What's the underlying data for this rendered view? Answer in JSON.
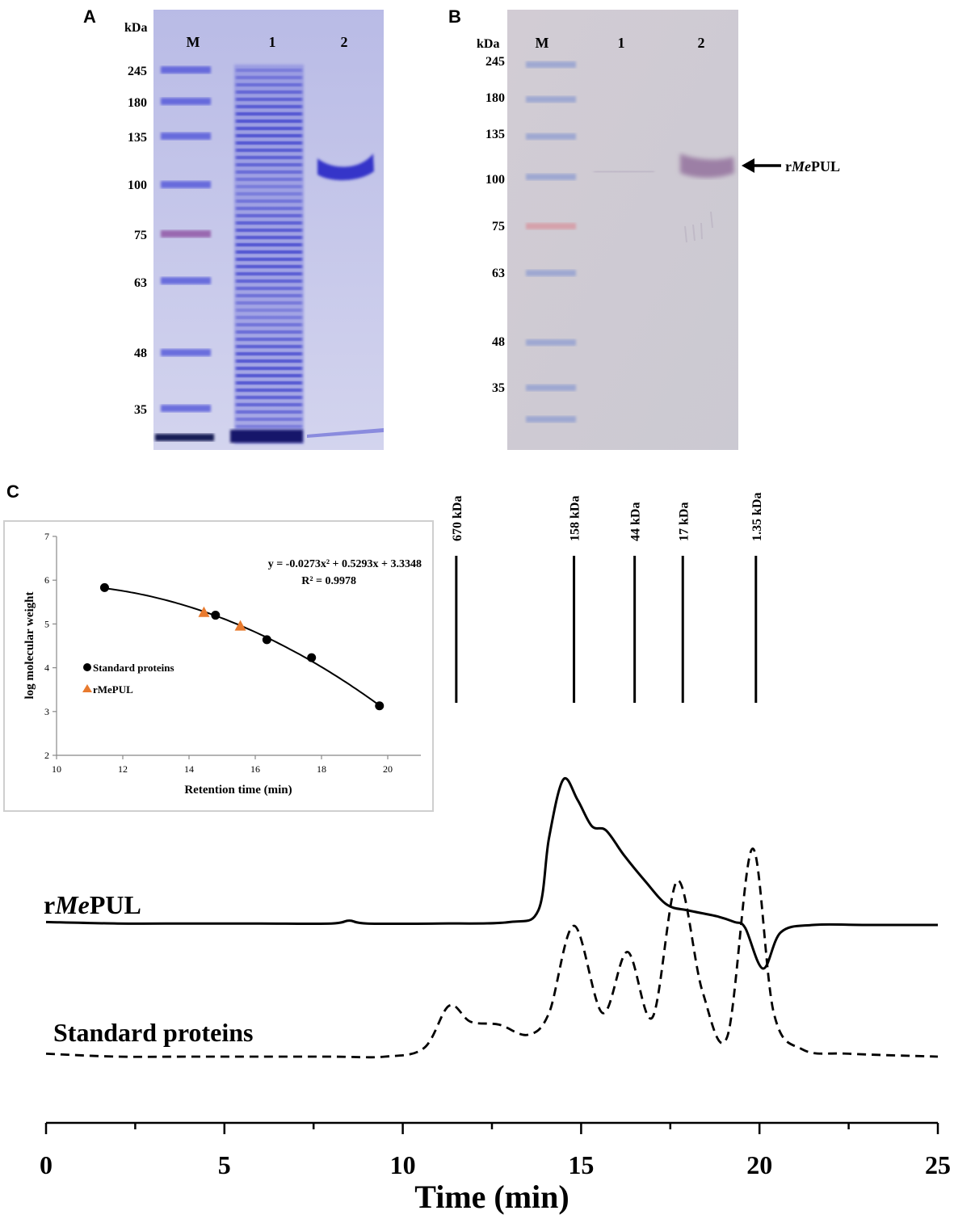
{
  "panels": {
    "a": {
      "letter": "A",
      "kda_label": "kDa",
      "lane_labels": [
        "M",
        "1",
        "2"
      ],
      "markers": [
        "245",
        "180",
        "135",
        "100",
        "75",
        "63",
        "48",
        "35"
      ]
    },
    "b": {
      "letter": "B",
      "kda_label": "kDa",
      "lane_labels": [
        "M",
        "1",
        "2"
      ],
      "markers": [
        "245",
        "180",
        "135",
        "100",
        "75",
        "63",
        "48",
        "35"
      ],
      "arrow_label_prefix": "r",
      "arrow_label_italic": "Me",
      "arrow_label_suffix": "PUL"
    },
    "c": {
      "letter": "C",
      "mw_standards": [
        "670 kDa",
        "158 kDa",
        "44 kDa",
        "17 kDa",
        "1.35 kDa"
      ],
      "trace_label_prefix": "r",
      "trace_label_italic": "Me",
      "trace_label_suffix": "PUL",
      "standards_label": "Standard proteins"
    }
  },
  "colors": {
    "coomassie": "#3b3fd6",
    "gel_bg": "#c9cbe9",
    "membrane_bg": "#cfcbd4",
    "triangle": "#e87a2e"
  },
  "chart_data": [
    {
      "type": "line",
      "xlabel": "Time (min)",
      "xlim": [
        0,
        25
      ],
      "xticks": [
        0,
        5,
        10,
        15,
        20,
        25
      ],
      "series": [
        {
          "name": "rMePUL",
          "style": "solid",
          "x": [
            0,
            2,
            4,
            6,
            8,
            8.5,
            9,
            11,
            13,
            13.8,
            14.1,
            14.5,
            14.9,
            15.3,
            15.7,
            16.2,
            16.8,
            17.4,
            18,
            18.8,
            19.3,
            19.6,
            20.1,
            20.6,
            21.5,
            23,
            25
          ],
          "y": [
            0.02,
            0.01,
            0.01,
            0.01,
            0.01,
            0.03,
            0.01,
            0.01,
            0.02,
            0.1,
            0.6,
            1.0,
            0.86,
            0.68,
            0.65,
            0.48,
            0.3,
            0.14,
            0.1,
            0.06,
            0.02,
            -0.02,
            -0.3,
            -0.05,
            0.0,
            0.0,
            0.0
          ]
        },
        {
          "name": "Standard proteins",
          "style": "dashed",
          "x": [
            0,
            2,
            4,
            6,
            8,
            9.5,
            10.6,
            11.3,
            11.9,
            12.7,
            13.5,
            14.1,
            14.8,
            15.6,
            16.3,
            17.0,
            17.7,
            18.4,
            19.1,
            19.8,
            20.4,
            21.2,
            22.5,
            25
          ],
          "y": [
            0.02,
            0.0,
            0.0,
            0.0,
            0.0,
            0.0,
            0.06,
            0.35,
            0.24,
            0.22,
            0.15,
            0.3,
            0.9,
            0.3,
            0.72,
            0.27,
            1.21,
            0.45,
            0.14,
            1.43,
            0.3,
            0.05,
            0.02,
            0.0
          ]
        }
      ],
      "mw_markers": [
        {
          "label": "670 kDa",
          "time": 11.5
        },
        {
          "label": "158 kDa",
          "time": 14.8
        },
        {
          "label": "44 kDa",
          "time": 16.5
        },
        {
          "label": "17 kDa",
          "time": 17.85
        },
        {
          "label": "1.35 kDa",
          "time": 19.9
        }
      ],
      "annotations": [
        "rMePUL",
        "Standard proteins"
      ]
    },
    {
      "type": "scatter",
      "xlabel": "Retention time (min)",
      "ylabel": "log molecular weight",
      "xlim": [
        10,
        21
      ],
      "ylim": [
        2,
        7
      ],
      "xticks": [
        10,
        12,
        14,
        16,
        18,
        20
      ],
      "yticks": [
        2,
        3,
        4,
        5,
        6,
        7
      ],
      "equation": "y = -0.0273x² + 0.5293x + 3.3348",
      "r_squared": "R² = 0.9978",
      "fit_coeffs": [
        -0.0273,
        0.5293,
        3.3348
      ],
      "series": [
        {
          "name": "Standard proteins",
          "marker": "circle",
          "x": [
            11.45,
            14.8,
            16.35,
            17.7,
            19.75
          ],
          "y": [
            5.83,
            5.2,
            4.64,
            4.23,
            3.13
          ]
        },
        {
          "name": "rMePUL",
          "marker": "triangle",
          "x": [
            14.45,
            15.55
          ],
          "y": [
            5.27,
            4.96
          ]
        }
      ],
      "legend_position": "middle-left"
    }
  ]
}
